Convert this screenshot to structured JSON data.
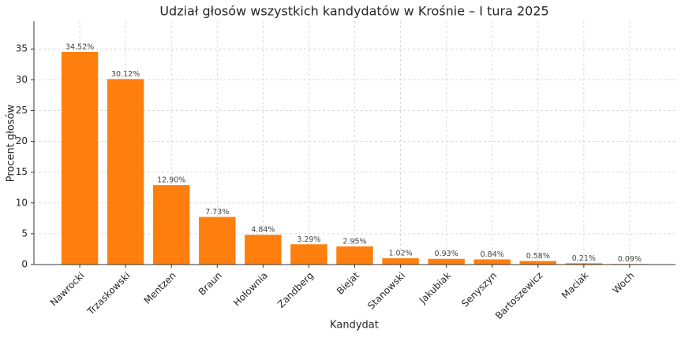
{
  "chart_data": {
    "type": "bar",
    "title": "Udział głosów wszystkich kandydatów w Krośnie – I tura 2025",
    "x_label": "Kandydat",
    "y_label": "Procent głosów",
    "categories": [
      "Nawrocki",
      "Trzaskowski",
      "Mentzen",
      "Braun",
      "Hołownia",
      "Zandberg",
      "Biejat",
      "Stanowski",
      "Jakubiak",
      "Senyszyn",
      "Bartoszewicz",
      "Maciak",
      "Woch"
    ],
    "values": [
      34.52,
      30.12,
      12.9,
      7.73,
      4.84,
      3.29,
      2.95,
      1.02,
      0.93,
      0.84,
      0.58,
      0.21,
      0.09
    ],
    "value_labels": [
      "34.52%",
      "30.12%",
      "12.90%",
      "7.73%",
      "4.84%",
      "3.29%",
      "2.95%",
      "1.02%",
      "0.93%",
      "0.84%",
      "0.58%",
      "0.21%",
      "0.09%"
    ],
    "color": "#ff7f0e",
    "ylim": [
      0,
      39.5
    ],
    "yticks": [
      0,
      5,
      10,
      15,
      20,
      25,
      30,
      35
    ],
    "grid": true
  }
}
